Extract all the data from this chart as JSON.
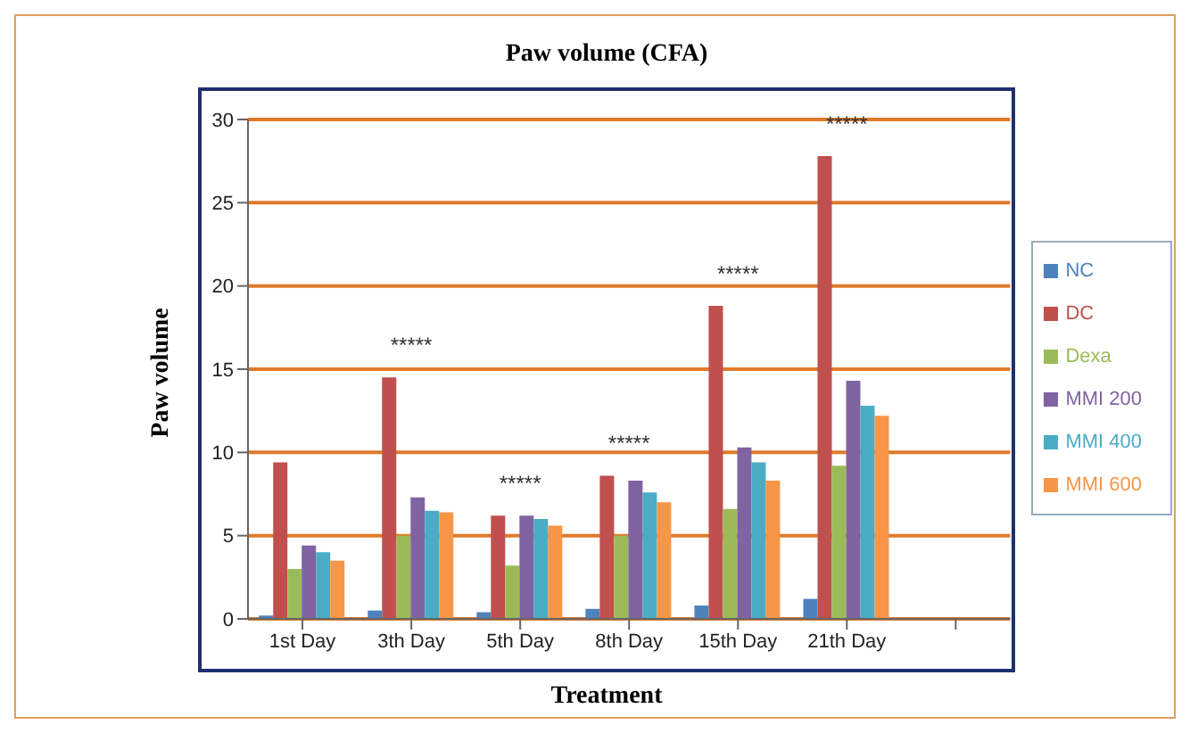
{
  "chart_data": {
    "type": "bar",
    "title": "Paw volume (CFA)",
    "xlabel": "Treatment",
    "ylabel": "Paw volume",
    "categories": [
      "1st Day",
      "3th Day",
      "5th Day",
      "8th Day",
      "15th Day",
      "21th Day",
      null
    ],
    "series": [
      {
        "name": "NC",
        "color": "#4f81bd",
        "values": [
          0.2,
          0.5,
          0.4,
          0.6,
          0.8,
          1.2,
          null
        ]
      },
      {
        "name": "DC",
        "color": "#c0504d",
        "values": [
          9.4,
          14.5,
          6.2,
          8.6,
          18.8,
          27.8,
          null
        ]
      },
      {
        "name": "Dexa",
        "color": "#9bbb59",
        "values": [
          3.0,
          5.0,
          3.2,
          5.0,
          6.6,
          9.2,
          null
        ]
      },
      {
        "name": "MMI 200",
        "color": "#8064a2",
        "values": [
          4.4,
          7.3,
          6.2,
          8.3,
          10.3,
          14.3,
          null
        ]
      },
      {
        "name": "MMI 400",
        "color": "#4bacc6",
        "values": [
          4.0,
          6.5,
          6.0,
          7.6,
          9.4,
          12.8,
          null
        ]
      },
      {
        "name": "MMI 600",
        "color": "#f79646",
        "values": [
          3.5,
          6.4,
          5.6,
          7.0,
          8.3,
          12.2,
          null
        ]
      }
    ],
    "ylim": [
      0,
      30
    ],
    "yticks": [
      0,
      5,
      10,
      15,
      20,
      25,
      30
    ],
    "grid": "y",
    "legend": "right",
    "annotations": [
      "*****",
      "*****",
      "*****",
      "*****",
      "*****"
    ]
  }
}
